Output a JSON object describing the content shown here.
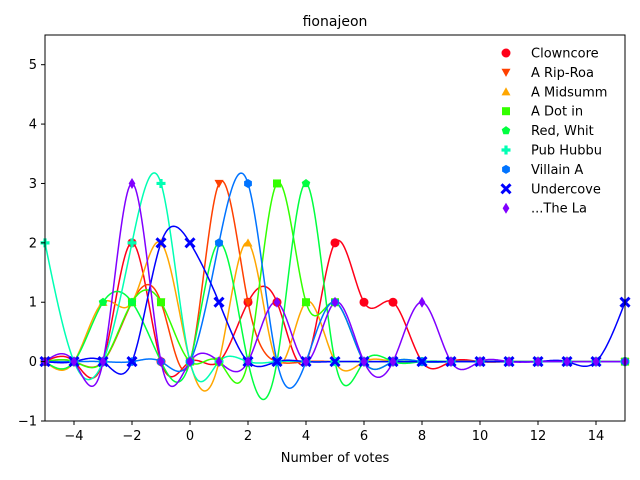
{
  "chart_data": {
    "type": "line",
    "title": "fionajeon",
    "xlabel": "Number of votes",
    "ylabel": "",
    "xlim": [
      -5,
      15
    ],
    "ylim": [
      -1,
      5.5
    ],
    "xticks": [
      -4,
      -2,
      0,
      2,
      4,
      6,
      8,
      10,
      12,
      14
    ],
    "yticks": [
      -1,
      0,
      1,
      2,
      3,
      4,
      5
    ],
    "grid": false,
    "legend_position": "top-right",
    "x": [
      -5,
      -4,
      -3,
      -2,
      -1,
      0,
      1,
      2,
      3,
      4,
      5,
      6,
      7,
      8,
      9,
      10,
      11,
      12,
      13,
      14,
      15
    ],
    "series": [
      {
        "name": "Clowncore",
        "color": "#ff0019",
        "marker": "circle",
        "values": [
          0,
          0,
          0,
          2,
          0,
          0,
          0,
          1,
          1,
          0,
          2,
          1,
          1,
          0,
          0,
          0,
          0,
          0,
          0,
          0,
          0
        ]
      },
      {
        "name": "A Rip-Roa",
        "color": "#ff4000",
        "marker": "triangle-down",
        "values": [
          0,
          0,
          0,
          1,
          1,
          0,
          3,
          1,
          0,
          0,
          0,
          0,
          0,
          0,
          0,
          0,
          0,
          0,
          0,
          0,
          0
        ]
      },
      {
        "name": "A Midsumm",
        "color": "#ffa600",
        "marker": "triangle-up",
        "values": [
          0,
          0,
          1,
          1,
          2,
          0,
          0,
          2,
          0,
          1,
          0,
          0,
          0,
          0,
          0,
          0,
          0,
          0,
          0,
          0,
          0
        ]
      },
      {
        "name": "A Dot in",
        "color": "#33ff00",
        "marker": "square",
        "values": [
          0,
          0,
          0,
          1,
          1,
          0,
          0,
          0,
          3,
          1,
          1,
          0,
          0,
          0,
          0,
          0,
          0,
          0,
          0,
          0,
          0
        ]
      },
      {
        "name": "Red, Whit",
        "color": "#00ff40",
        "marker": "pentagon",
        "values": [
          0,
          0,
          1,
          1,
          0,
          0,
          2,
          0,
          0,
          3,
          0,
          0,
          0,
          0,
          0,
          0,
          0,
          0,
          0,
          0,
          0
        ]
      },
      {
        "name": "Pub Hubbu",
        "color": "#00ffb3",
        "marker": "plus",
        "values": [
          2,
          0,
          0,
          2,
          3,
          0,
          0,
          0,
          0,
          0,
          0,
          0,
          0,
          0,
          0,
          0,
          0,
          0,
          0,
          0,
          0
        ]
      },
      {
        "name": "Villain A",
        "color": "#0073ff",
        "marker": "hexagon",
        "values": [
          0,
          0,
          0,
          0,
          0,
          0,
          2,
          3,
          0,
          0,
          1,
          0,
          0,
          0,
          0,
          0,
          0,
          0,
          0,
          0,
          0
        ]
      },
      {
        "name": "Undercove",
        "color": "#0000ff",
        "marker": "x",
        "values": [
          0,
          0,
          0,
          0,
          2,
          2,
          1,
          0,
          0,
          0,
          0,
          0,
          0,
          0,
          0,
          0,
          0,
          0,
          0,
          0,
          1
        ]
      },
      {
        "name": "...The La",
        "color": "#8000ff",
        "marker": "diamond",
        "values": [
          0,
          0,
          0,
          3,
          0,
          0,
          0,
          0,
          1,
          0,
          1,
          0,
          0,
          1,
          0,
          0,
          0,
          0,
          0,
          0,
          0
        ]
      }
    ]
  }
}
